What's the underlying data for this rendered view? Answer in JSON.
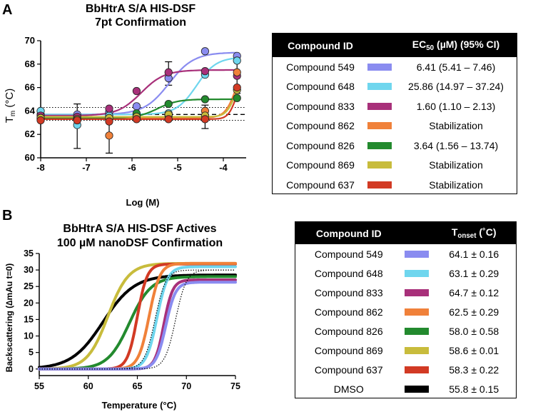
{
  "panel_a": {
    "label": "A",
    "title_line1": "BbHtrA S/A HIS-DSF",
    "title_line2": "7pt Confirmation",
    "table": {
      "header_id": "Compound ID",
      "header_value_main": "EC",
      "header_value_sub": "50",
      "header_value_rest": " (µM) (95% CI)",
      "rows": [
        {
          "name": "Compound 549",
          "value": "6.41 (5.41 – 7.46)",
          "color": "#8a8cf0"
        },
        {
          "name": "Compound 648",
          "value": "25.86 (14.97 – 37.24)",
          "color": "#6fd6ee"
        },
        {
          "name": "Compound 833",
          "value": "1.60 (1.10 – 2.13)",
          "color": "#a8307a"
        },
        {
          "name": "Compound 862",
          "value": "Stabilization",
          "color": "#f0813a"
        },
        {
          "name": "Compound 826",
          "value": "3.64 (1.56 – 13.74)",
          "color": "#238a2e"
        },
        {
          "name": "Compound 869",
          "value": "Stabilization",
          "color": "#c8bc3c"
        },
        {
          "name": "Compound 637",
          "value": "Stabilization",
          "color": "#d23a24"
        }
      ]
    }
  },
  "panel_b": {
    "label": "B",
    "title_line1": "BbHtrA S/A HIS-DSF Actives",
    "title_line2": "100 µM nanoDSF Confirmation",
    "table": {
      "header_id": "Compound ID",
      "header_value_main": "T",
      "header_value_sub": "onset",
      "header_value_rest": " (˚C)",
      "rows": [
        {
          "name": "Compound 549",
          "value": "64.1 ± 0.16",
          "color": "#8a8cf0"
        },
        {
          "name": "Compound 648",
          "value": "63.1 ± 0.29",
          "color": "#6fd6ee"
        },
        {
          "name": "Compound 833",
          "value": "64.7 ± 0.12",
          "color": "#a8307a"
        },
        {
          "name": "Compound 862",
          "value": "62.5 ± 0.29",
          "color": "#f0813a"
        },
        {
          "name": "Compound 826",
          "value": "58.0 ± 0.58",
          "color": "#238a2e"
        },
        {
          "name": "Compound 869",
          "value": "58.6 ± 0.01",
          "color": "#c8bc3c"
        },
        {
          "name": "Compound 637",
          "value": "58.3 ± 0.22",
          "color": "#d23a24"
        },
        {
          "name": "DMSO",
          "value": "55.8 ± 0.15",
          "color": "#000000"
        }
      ]
    }
  },
  "chart_data": [
    {
      "type": "scatter",
      "title": "BbHtrA S/A HIS-DSF 7pt Confirmation",
      "xlabel": "Log (M)",
      "ylabel": "Tm (°C)",
      "xlim": [
        -8,
        -3.5
      ],
      "ylim": [
        60,
        70
      ],
      "xticks": [
        -8,
        -7,
        -6,
        -5,
        -4
      ],
      "yticks": [
        60,
        62,
        64,
        66,
        68,
        70
      ],
      "x": [
        -8,
        -7.2,
        -6.5,
        -5.9,
        -5.2,
        -4.4,
        -3.7
      ],
      "baseline": 63.7,
      "baseline_band": [
        63.2,
        64.3
      ],
      "series": [
        {
          "name": "Compound 549",
          "color": "#8a8cf0",
          "values": [
            63.7,
            63.7,
            63.9,
            64.4,
            66.8,
            69.1,
            68.7
          ],
          "fit": {
            "bottom": 63.7,
            "top": 69.0,
            "logec50": -5.19,
            "hill": 1.6
          }
        },
        {
          "name": "Compound 648",
          "color": "#6fd6ee",
          "values": [
            64.0,
            62.8,
            63.6,
            63.7,
            63.8,
            67.1,
            68.3
          ],
          "fit": {
            "bottom": 63.7,
            "top": 68.6,
            "logec50": -4.59,
            "hill": 2.0
          }
        },
        {
          "name": "Compound 833",
          "color": "#a8307a",
          "values": [
            63.6,
            63.5,
            64.2,
            65.7,
            67.3,
            67.4,
            67.0
          ],
          "fit": {
            "bottom": 63.6,
            "top": 67.5,
            "logec50": -5.8,
            "hill": 1.7
          }
        },
        {
          "name": "Compound 862",
          "color": "#f0813a",
          "values": [
            63.3,
            63.3,
            61.9,
            63.4,
            63.6,
            64.0,
            67.3
          ],
          "fit": {
            "bottom": 63.4,
            "top": 69.0,
            "logec50": -3.7,
            "hill": 3.5
          }
        },
        {
          "name": "Compound 826",
          "color": "#238a2e",
          "values": [
            63.4,
            63.3,
            63.2,
            63.8,
            64.6,
            65.0,
            65.1
          ],
          "fit": {
            "bottom": 63.4,
            "top": 65.0,
            "logec50": -5.44,
            "hill": 2.0
          }
        },
        {
          "name": "Compound 869",
          "color": "#c8bc3c",
          "values": [
            63.4,
            63.3,
            63.4,
            63.5,
            63.7,
            63.6,
            65.8
          ],
          "fit": {
            "bottom": 63.5,
            "top": 67.0,
            "logec50": -3.75,
            "hill": 4.5
          }
        },
        {
          "name": "Compound 637",
          "color": "#d23a24",
          "values": [
            63.2,
            63.2,
            63.1,
            63.3,
            63.3,
            63.3,
            66.0
          ],
          "fit": {
            "bottom": 63.3,
            "top": 67.0,
            "logec50": -3.72,
            "hill": 5.0
          }
        }
      ],
      "error_bars": [
        {
          "x": -7.2,
          "low": 60.8,
          "high": 64.6
        },
        {
          "x": -6.5,
          "low": 60.4,
          "high": 63.5
        },
        {
          "x": -5.2,
          "low": 66.2,
          "high": 68.2
        },
        {
          "x": -4.4,
          "low": 62.5,
          "high": 64.5
        },
        {
          "x": -3.7,
          "low": 65.5,
          "high": 68.4
        }
      ]
    },
    {
      "type": "line",
      "title": "BbHtrA S/A HIS-DSF Actives 100 µM nanoDSF Confirmation",
      "xlabel": "Temperature (°C)",
      "ylabel": "Backscattering (∆mAu t=0)",
      "xlim": [
        55,
        75
      ],
      "ylim": [
        -2,
        35
      ],
      "xticks": [
        55,
        60,
        65,
        70,
        75
      ],
      "yticks": [
        0,
        5,
        10,
        15,
        20,
        25,
        30,
        35
      ],
      "series": [
        {
          "name": "DMSO",
          "color": "#000000",
          "top": 28.5,
          "t50": 61.5,
          "width": 1.6
        },
        {
          "name": "Compound 869",
          "color": "#c8bc3c",
          "top": 32.0,
          "t50": 62.0,
          "width": 1.05
        },
        {
          "name": "Compound 826",
          "color": "#238a2e",
          "top": 28.0,
          "t50": 64.2,
          "width": 1.1
        },
        {
          "name": "Compound 637",
          "color": "#d23a24",
          "top": 31.8,
          "t50": 65.0,
          "width": 0.5
        },
        {
          "name": "Compound 862",
          "color": "#f0813a",
          "top": 32.0,
          "t50": 66.2,
          "width": 0.55
        },
        {
          "name": "Compound 648",
          "color": "#6fd6ee",
          "top": 31.0,
          "t50": 67.0,
          "width": 0.55
        },
        {
          "name": "Compound 833",
          "color": "#a8307a",
          "top": 27.0,
          "t50": 67.7,
          "width": 0.45
        },
        {
          "name": "Compound 549",
          "color": "#8a8cf0",
          "top": 26.3,
          "t50": 67.9,
          "width": 0.5
        }
      ],
      "reference_band": {
        "top": 30.0,
        "t50_low": 66.8,
        "t50_high": 68.9,
        "width": 0.55
      }
    }
  ]
}
